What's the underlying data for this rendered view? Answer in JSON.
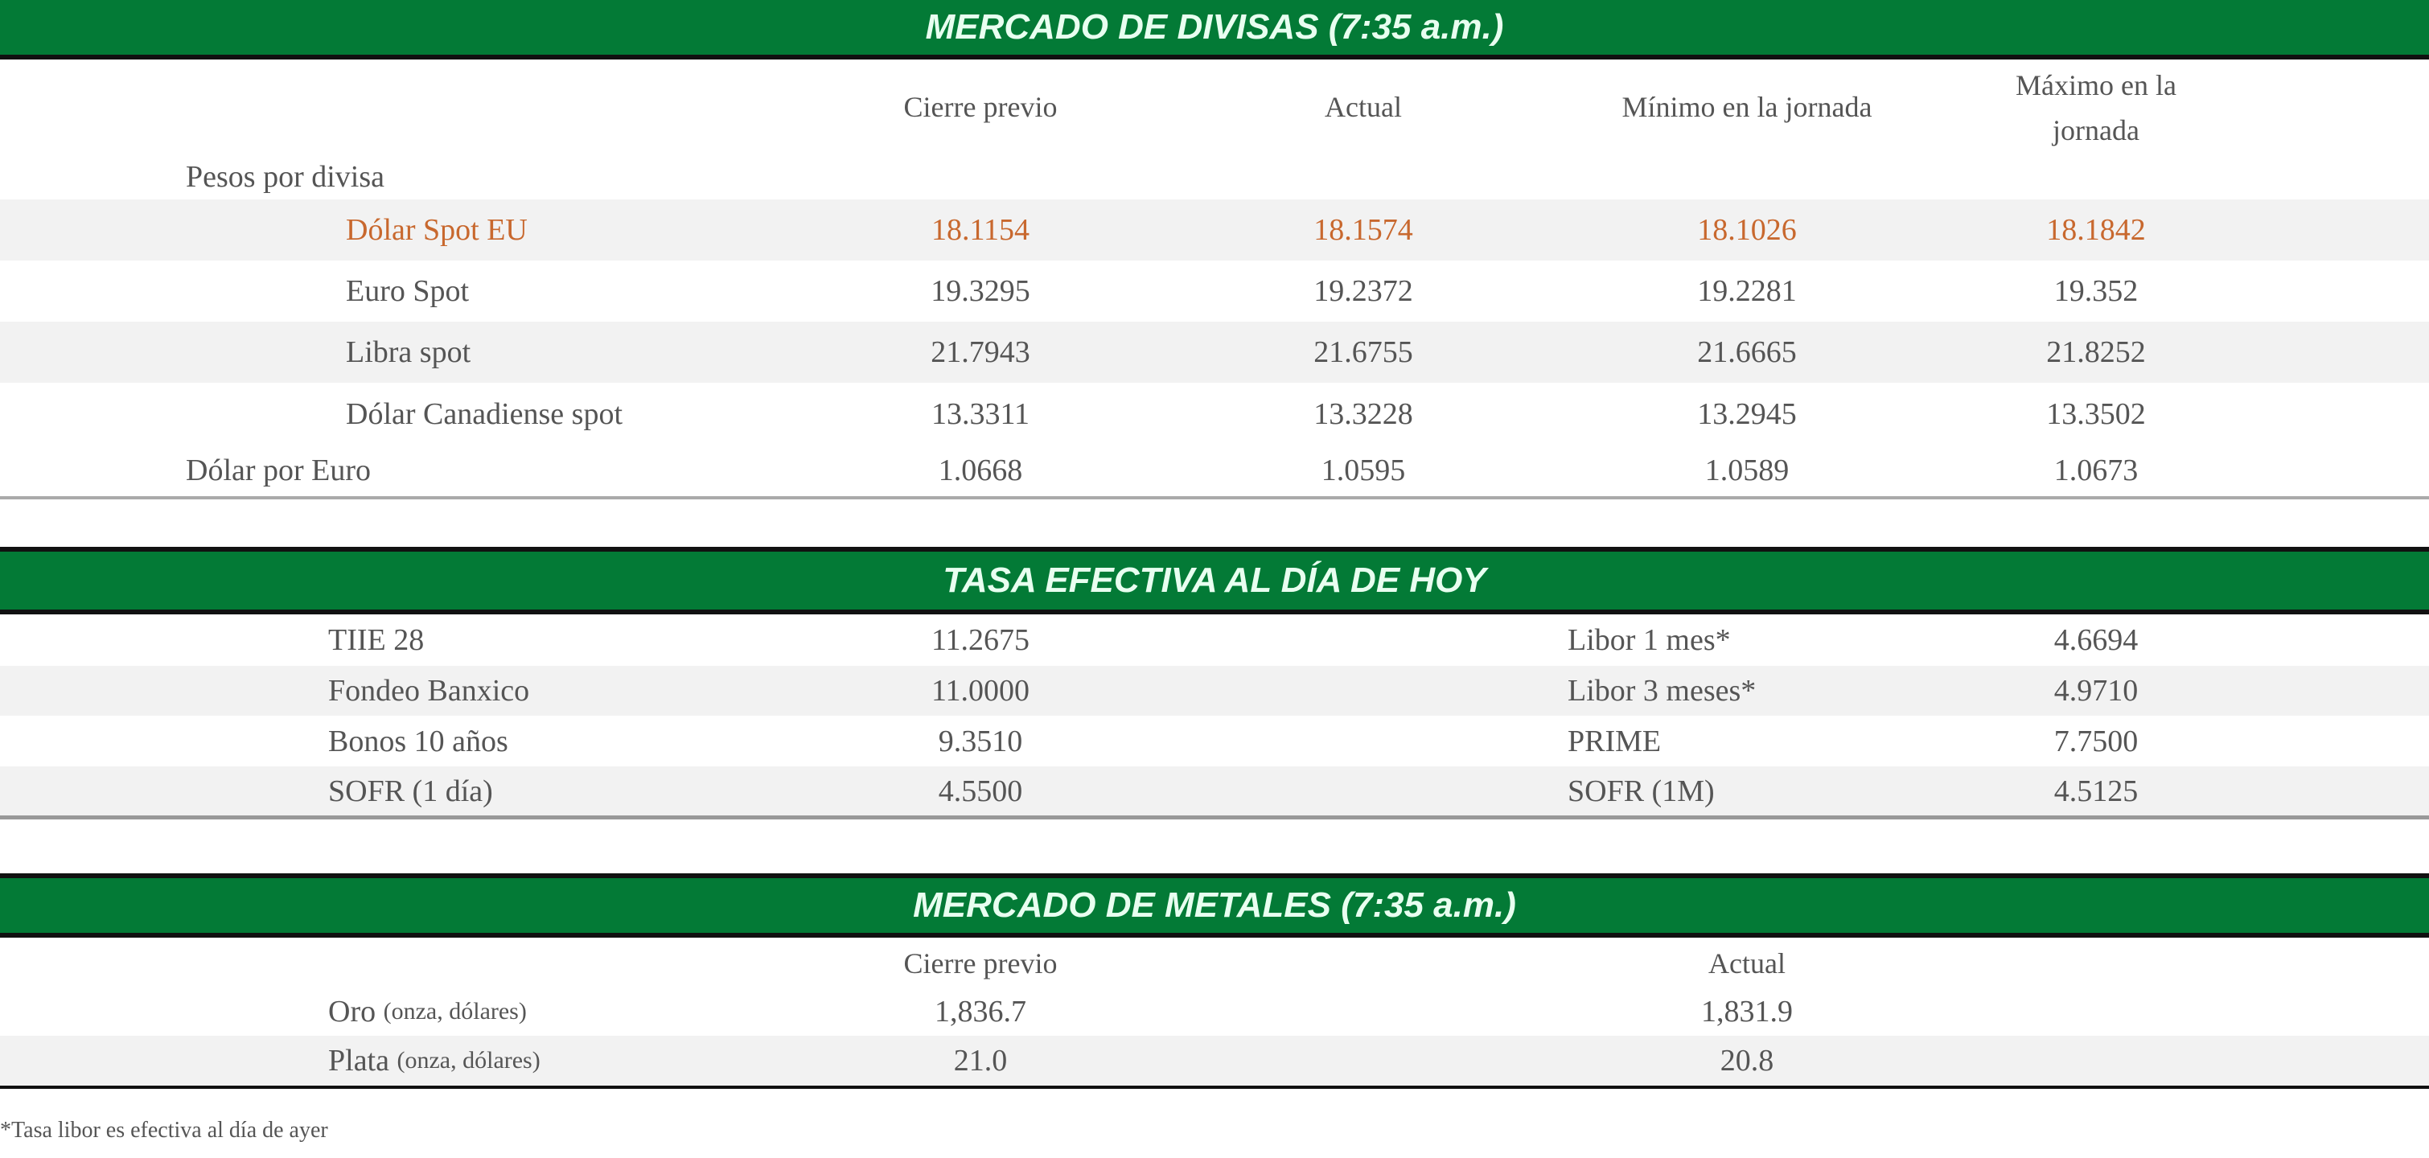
{
  "divisas": {
    "title": "MERCADO DE DIVISAS (7:35 a.m.)",
    "columns": [
      "Cierre previo",
      "Actual",
      "Mínimo en la jornada",
      "Máximo en la jornada"
    ],
    "max_col_line1": "Máximo en la",
    "max_col_line2": "jornada",
    "group_label": "Pesos por divisa",
    "rows": [
      {
        "label": "Dólar Spot EU",
        "values": [
          "18.1154",
          "18.1574",
          "18.1026",
          "18.1842"
        ],
        "highlight": true
      },
      {
        "label": "Euro Spot",
        "values": [
          "19.3295",
          "19.2372",
          "19.2281",
          "19.352"
        ]
      },
      {
        "label": "Libra spot",
        "values": [
          "21.7943",
          "21.6755",
          "21.6665",
          "21.8252"
        ]
      },
      {
        "label": "Dólar Canadiense spot",
        "values": [
          "13.3311",
          "13.3228",
          "13.2945",
          "13.3502"
        ]
      },
      {
        "label": "Dólar por Euro",
        "values": [
          "1.0668",
          "1.0595",
          "1.0589",
          "1.0673"
        ]
      }
    ]
  },
  "tasas": {
    "title": "TASA EFECTIVA AL DÍA DE HOY",
    "rows": [
      {
        "left_label": "TIIE 28",
        "left_value": "11.2675",
        "right_label": "Libor 1 mes*",
        "right_value": "4.6694"
      },
      {
        "left_label": "Fondeo Banxico",
        "left_value": "11.0000",
        "right_label": "Libor 3 meses*",
        "right_value": "4.9710"
      },
      {
        "left_label": "Bonos 10 años",
        "left_value": "9.3510",
        "right_label": "PRIME",
        "right_value": "7.7500"
      },
      {
        "left_label": "SOFR (1 día)",
        "left_value": "4.5500",
        "right_label": "SOFR (1M)",
        "right_value": "4.5125"
      }
    ]
  },
  "metales": {
    "title": "MERCADO DE METALES (7:35 a.m.)",
    "columns": [
      "Cierre previo",
      "Actual"
    ],
    "rows": [
      {
        "label": "Oro",
        "unit": "(onza, dólares)",
        "values": [
          "1,836.7",
          "1,831.9"
        ]
      },
      {
        "label": "Plata",
        "unit": "(onza, dólares)",
        "values": [
          "21.0",
          "20.8"
        ]
      }
    ]
  },
  "footnote": "*Tasa libor es efectiva al día de ayer",
  "colors": {
    "header_green": "#037a36",
    "highlight_orange": "#c8682e",
    "stripe_gray": "#f2f2f2"
  }
}
